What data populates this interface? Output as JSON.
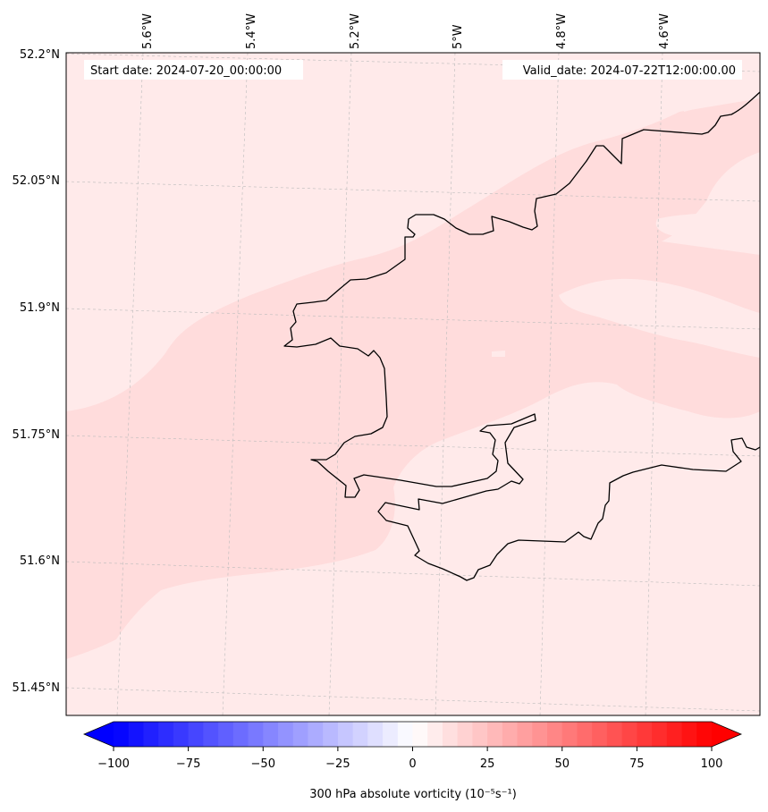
{
  "header": {
    "start_date": "Start date: 2024-07-20_00:00:00",
    "valid_date": "Valid_date: 2024-07-22T12:00:00.00"
  },
  "axes": {
    "longitude_labels": [
      "5.6°W",
      "5.4°W",
      "5.2°W",
      "5°W",
      "4.8°W",
      "4.6°W"
    ],
    "latitude_labels": [
      "52.2°N",
      "52.05°N",
      "51.9°N",
      "51.75°N",
      "51.6°N",
      "51.45°N"
    ]
  },
  "colorbar": {
    "label": "300 hPa absolute vorticity (10⁻⁵s⁻¹)",
    "tick_labels": [
      "−100",
      "−75",
      "−50",
      "−25",
      "0",
      "25",
      "50",
      "75",
      "100"
    ],
    "min_color": "#0000ff",
    "mid_color": "#ffffff",
    "max_color": "#ff0000"
  },
  "colors": {
    "field_light": "#ffeaea",
    "field_medium": "#ffdcdc",
    "coastline": "#000000",
    "gridline": "#bbbbbb"
  }
}
